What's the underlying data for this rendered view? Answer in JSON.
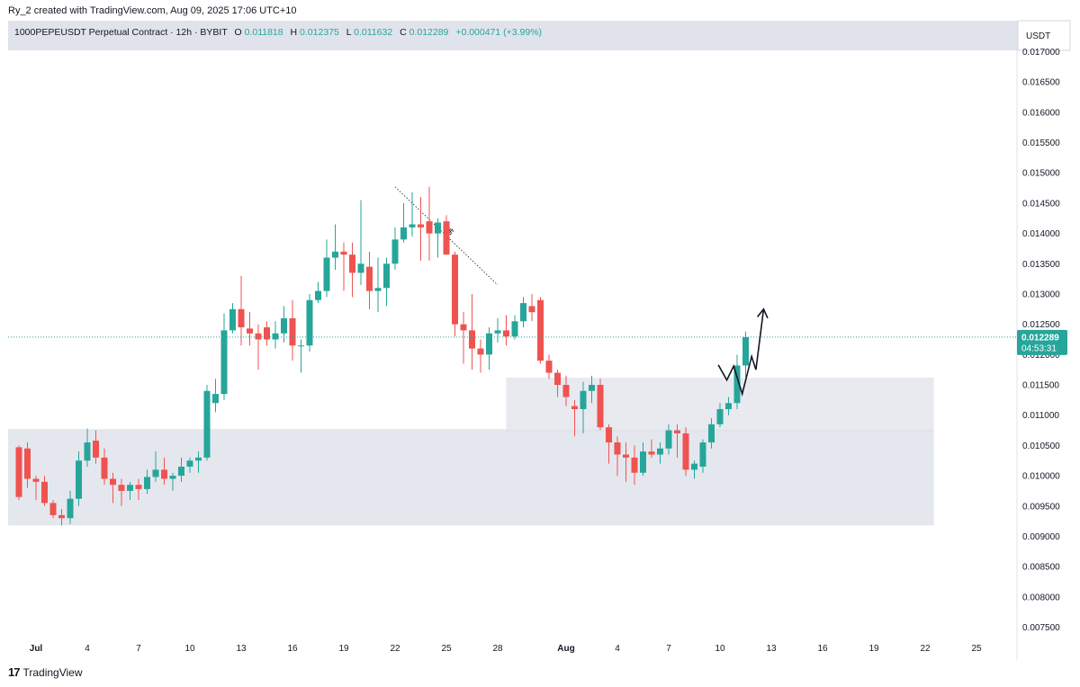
{
  "attribution": "Ry_2 created with TradingView.com, Aug 09, 2025 17:06 UTC+10",
  "legend": {
    "symbol": "1000PEPEUSDT Perpetual Contract · 12h · BYBIT",
    "o_label": "O",
    "o": "0.011818",
    "h_label": "H",
    "h": "0.012375",
    "l_label": "L",
    "l": "0.011632",
    "c_label": "C",
    "c": "0.012289",
    "change": "+0.000471 (+3.99%)"
  },
  "price_axis": {
    "currency": "USDT",
    "ticks": [
      "0.017000",
      "0.016500",
      "0.016000",
      "0.015500",
      "0.015000",
      "0.014500",
      "0.014000",
      "0.013500",
      "0.013000",
      "0.012500",
      "0.012000",
      "0.011500",
      "0.011000",
      "0.010500",
      "0.010000",
      "0.009500",
      "0.009000",
      "0.008500",
      "0.008000",
      "0.007500"
    ],
    "current_price": "0.012289",
    "countdown": "04:53:31"
  },
  "time_axis": {
    "labels": [
      {
        "text": "Jul",
        "bold": true,
        "day": 1
      },
      {
        "text": "4",
        "bold": false,
        "day": 4
      },
      {
        "text": "7",
        "bold": false,
        "day": 7
      },
      {
        "text": "10",
        "bold": false,
        "day": 10
      },
      {
        "text": "13",
        "bold": false,
        "day": 13
      },
      {
        "text": "16",
        "bold": false,
        "day": 16
      },
      {
        "text": "19",
        "bold": false,
        "day": 19
      },
      {
        "text": "22",
        "bold": false,
        "day": 22
      },
      {
        "text": "25",
        "bold": false,
        "day": 25
      },
      {
        "text": "28",
        "bold": false,
        "day": 28
      },
      {
        "text": "Aug",
        "bold": true,
        "day": 32
      },
      {
        "text": "4",
        "bold": false,
        "day": 35
      },
      {
        "text": "7",
        "bold": false,
        "day": 38
      },
      {
        "text": "10",
        "bold": false,
        "day": 41
      },
      {
        "text": "13",
        "bold": false,
        "day": 44
      },
      {
        "text": "16",
        "bold": false,
        "day": 47
      },
      {
        "text": "19",
        "bold": false,
        "day": 50
      },
      {
        "text": "22",
        "bold": false,
        "day": 53
      },
      {
        "text": "25",
        "bold": false,
        "day": 56
      }
    ]
  },
  "annotations": {
    "ss_label": "$$",
    "ss_line": {
      "from_day": 22.0,
      "from_price": 0.01477,
      "to_day": 28.0,
      "to_price": 0.01315
    },
    "zones": [
      {
        "name": "demand-zone",
        "start_day": -0.7,
        "end_day": 53.5,
        "top": 0.01077,
        "bottom": 0.00918
      },
      {
        "name": "flip-zone",
        "start_day": 28.5,
        "end_day": 53.5,
        "top": 0.01162,
        "bottom": 0.01072
      }
    ],
    "projection_path": [
      {
        "day": 40.9,
        "price": 0.01183
      },
      {
        "day": 41.4,
        "price": 0.01158
      },
      {
        "day": 41.8,
        "price": 0.01181
      },
      {
        "day": 42.3,
        "price": 0.01135
      },
      {
        "day": 42.85,
        "price": 0.01197
      },
      {
        "day": 43.1,
        "price": 0.01175
      },
      {
        "day": 43.55,
        "price": 0.01275
      }
    ]
  },
  "colors": {
    "up": "#26a69a",
    "down": "#ef5350",
    "zone": "#e0e3eb",
    "legend_value": "#26a69a",
    "price_label_bg": "#26a69a",
    "text": "#131722"
  },
  "chart_data": {
    "type": "candlestick",
    "title": "1000PEPEUSDT Perpetual Contract · 12h · BYBIT",
    "interval": "12h",
    "xlabel": "",
    "ylabel": "USDT",
    "ylim": [
      0.00725,
      0.0172
    ],
    "x_range_days": [
      0.7,
      57.0
    ],
    "grid": false,
    "candles": [
      {
        "day": 0.0,
        "o": 0.01047,
        "h": 0.0105,
        "l": 0.0096,
        "c": 0.00965
      },
      {
        "day": 0.5,
        "o": 0.01045,
        "h": 0.01055,
        "l": 0.0098,
        "c": 0.00995
      },
      {
        "day": 1.0,
        "o": 0.00995,
        "h": 0.01,
        "l": 0.0096,
        "c": 0.0099
      },
      {
        "day": 1.5,
        "o": 0.0099,
        "h": 0.01,
        "l": 0.0095,
        "c": 0.00955
      },
      {
        "day": 2.0,
        "o": 0.00955,
        "h": 0.0096,
        "l": 0.0093,
        "c": 0.00935
      },
      {
        "day": 2.5,
        "o": 0.00935,
        "h": 0.00945,
        "l": 0.00918,
        "c": 0.0093
      },
      {
        "day": 3.0,
        "o": 0.0093,
        "h": 0.00975,
        "l": 0.0092,
        "c": 0.00962
      },
      {
        "day": 3.5,
        "o": 0.00962,
        "h": 0.0104,
        "l": 0.0095,
        "c": 0.01025
      },
      {
        "day": 4.0,
        "o": 0.01025,
        "h": 0.01078,
        "l": 0.01015,
        "c": 0.01055
      },
      {
        "day": 4.5,
        "o": 0.01058,
        "h": 0.01075,
        "l": 0.0102,
        "c": 0.0103
      },
      {
        "day": 5.0,
        "o": 0.0103,
        "h": 0.01045,
        "l": 0.00985,
        "c": 0.00995
      },
      {
        "day": 5.5,
        "o": 0.00995,
        "h": 0.01005,
        "l": 0.00955,
        "c": 0.00985
      },
      {
        "day": 6.0,
        "o": 0.00985,
        "h": 0.00995,
        "l": 0.0095,
        "c": 0.00975
      },
      {
        "day": 6.5,
        "o": 0.00975,
        "h": 0.0099,
        "l": 0.0096,
        "c": 0.00985
      },
      {
        "day": 7.0,
        "o": 0.00985,
        "h": 0.00995,
        "l": 0.0096,
        "c": 0.00978
      },
      {
        "day": 7.5,
        "o": 0.00978,
        "h": 0.0101,
        "l": 0.0097,
        "c": 0.00998
      },
      {
        "day": 8.0,
        "o": 0.00998,
        "h": 0.0104,
        "l": 0.0099,
        "c": 0.0101
      },
      {
        "day": 8.5,
        "o": 0.0101,
        "h": 0.0103,
        "l": 0.00985,
        "c": 0.00995
      },
      {
        "day": 9.0,
        "o": 0.00995,
        "h": 0.01005,
        "l": 0.00975,
        "c": 0.01
      },
      {
        "day": 9.5,
        "o": 0.01,
        "h": 0.0103,
        "l": 0.0099,
        "c": 0.01015
      },
      {
        "day": 10.0,
        "o": 0.01015,
        "h": 0.0103,
        "l": 0.01005,
        "c": 0.01025
      },
      {
        "day": 10.5,
        "o": 0.01025,
        "h": 0.0104,
        "l": 0.01005,
        "c": 0.0103
      },
      {
        "day": 11.0,
        "o": 0.0103,
        "h": 0.0115,
        "l": 0.01025,
        "c": 0.0114
      },
      {
        "day": 11.5,
        "o": 0.0112,
        "h": 0.0116,
        "l": 0.01105,
        "c": 0.01135
      },
      {
        "day": 12.0,
        "o": 0.01135,
        "h": 0.01268,
        "l": 0.01125,
        "c": 0.0124
      },
      {
        "day": 12.5,
        "o": 0.0124,
        "h": 0.01285,
        "l": 0.01235,
        "c": 0.01275
      },
      {
        "day": 13.0,
        "o": 0.01275,
        "h": 0.0133,
        "l": 0.01215,
        "c": 0.01245
      },
      {
        "day": 13.5,
        "o": 0.01243,
        "h": 0.0127,
        "l": 0.01215,
        "c": 0.01235
      },
      {
        "day": 14.0,
        "o": 0.01235,
        "h": 0.0125,
        "l": 0.01175,
        "c": 0.01225
      },
      {
        "day": 14.5,
        "o": 0.01245,
        "h": 0.01255,
        "l": 0.01215,
        "c": 0.01225
      },
      {
        "day": 15.0,
        "o": 0.01225,
        "h": 0.01255,
        "l": 0.0121,
        "c": 0.01235
      },
      {
        "day": 15.5,
        "o": 0.01235,
        "h": 0.0128,
        "l": 0.0122,
        "c": 0.0126
      },
      {
        "day": 16.0,
        "o": 0.0126,
        "h": 0.0129,
        "l": 0.0119,
        "c": 0.01215
      },
      {
        "day": 16.5,
        "o": 0.01215,
        "h": 0.01225,
        "l": 0.0117,
        "c": 0.01215
      },
      {
        "day": 17.0,
        "o": 0.01215,
        "h": 0.013,
        "l": 0.01205,
        "c": 0.0129
      },
      {
        "day": 17.5,
        "o": 0.0129,
        "h": 0.0132,
        "l": 0.01285,
        "c": 0.01305
      },
      {
        "day": 18.0,
        "o": 0.01305,
        "h": 0.0139,
        "l": 0.01295,
        "c": 0.0136
      },
      {
        "day": 18.5,
        "o": 0.0136,
        "h": 0.01415,
        "l": 0.0134,
        "c": 0.0137
      },
      {
        "day": 19.0,
        "o": 0.0137,
        "h": 0.01385,
        "l": 0.01305,
        "c": 0.01365
      },
      {
        "day": 19.5,
        "o": 0.01365,
        "h": 0.01385,
        "l": 0.01295,
        "c": 0.01335
      },
      {
        "day": 20.0,
        "o": 0.01335,
        "h": 0.01455,
        "l": 0.01315,
        "c": 0.0135
      },
      {
        "day": 20.5,
        "o": 0.01345,
        "h": 0.0137,
        "l": 0.01275,
        "c": 0.01305
      },
      {
        "day": 21.0,
        "o": 0.01305,
        "h": 0.0136,
        "l": 0.0127,
        "c": 0.0131
      },
      {
        "day": 21.5,
        "o": 0.0131,
        "h": 0.0136,
        "l": 0.0128,
        "c": 0.0135
      },
      {
        "day": 22.0,
        "o": 0.0135,
        "h": 0.0141,
        "l": 0.0134,
        "c": 0.0139
      },
      {
        "day": 22.5,
        "o": 0.0139,
        "h": 0.0145,
        "l": 0.01385,
        "c": 0.0141
      },
      {
        "day": 23.0,
        "o": 0.0141,
        "h": 0.01468,
        "l": 0.01395,
        "c": 0.01415
      },
      {
        "day": 23.5,
        "o": 0.01415,
        "h": 0.0146,
        "l": 0.01355,
        "c": 0.0141
      },
      {
        "day": 24.0,
        "o": 0.0142,
        "h": 0.01477,
        "l": 0.01355,
        "c": 0.014
      },
      {
        "day": 24.5,
        "o": 0.014,
        "h": 0.01425,
        "l": 0.0136,
        "c": 0.01418
      },
      {
        "day": 25.0,
        "o": 0.0142,
        "h": 0.0143,
        "l": 0.01365,
        "c": 0.01365
      },
      {
        "day": 25.5,
        "o": 0.01365,
        "h": 0.0137,
        "l": 0.0123,
        "c": 0.0125
      },
      {
        "day": 26.0,
        "o": 0.0125,
        "h": 0.0127,
        "l": 0.01185,
        "c": 0.0124
      },
      {
        "day": 26.5,
        "o": 0.0124,
        "h": 0.013,
        "l": 0.01175,
        "c": 0.0121
      },
      {
        "day": 27.0,
        "o": 0.0121,
        "h": 0.01225,
        "l": 0.0117,
        "c": 0.012
      },
      {
        "day": 27.5,
        "o": 0.012,
        "h": 0.01245,
        "l": 0.01175,
        "c": 0.01235
      },
      {
        "day": 28.0,
        "o": 0.01235,
        "h": 0.0126,
        "l": 0.0122,
        "c": 0.0124
      },
      {
        "day": 28.5,
        "o": 0.0124,
        "h": 0.01265,
        "l": 0.01215,
        "c": 0.0123
      },
      {
        "day": 29.0,
        "o": 0.0123,
        "h": 0.01265,
        "l": 0.01225,
        "c": 0.01255
      },
      {
        "day": 29.5,
        "o": 0.01255,
        "h": 0.01295,
        "l": 0.01245,
        "c": 0.01285
      },
      {
        "day": 30.0,
        "o": 0.0128,
        "h": 0.013,
        "l": 0.01255,
        "c": 0.0127
      },
      {
        "day": 30.5,
        "o": 0.0129,
        "h": 0.01295,
        "l": 0.01185,
        "c": 0.0119
      },
      {
        "day": 31.0,
        "o": 0.0119,
        "h": 0.012,
        "l": 0.0116,
        "c": 0.0117
      },
      {
        "day": 31.5,
        "o": 0.0117,
        "h": 0.01175,
        "l": 0.0113,
        "c": 0.0115
      },
      {
        "day": 32.0,
        "o": 0.0115,
        "h": 0.01165,
        "l": 0.01115,
        "c": 0.0113
      },
      {
        "day": 32.5,
        "o": 0.01115,
        "h": 0.01125,
        "l": 0.01065,
        "c": 0.0111
      },
      {
        "day": 33.0,
        "o": 0.0111,
        "h": 0.01155,
        "l": 0.0107,
        "c": 0.0114
      },
      {
        "day": 33.5,
        "o": 0.0114,
        "h": 0.01165,
        "l": 0.0112,
        "c": 0.0115
      },
      {
        "day": 34.0,
        "o": 0.0115,
        "h": 0.0116,
        "l": 0.01075,
        "c": 0.0108
      },
      {
        "day": 34.5,
        "o": 0.0108,
        "h": 0.01085,
        "l": 0.0102,
        "c": 0.01055
      },
      {
        "day": 35.0,
        "o": 0.01055,
        "h": 0.01065,
        "l": 0.01,
        "c": 0.01035
      },
      {
        "day": 35.5,
        "o": 0.01035,
        "h": 0.01055,
        "l": 0.0099,
        "c": 0.0103
      },
      {
        "day": 36.0,
        "o": 0.0103,
        "h": 0.0105,
        "l": 0.00985,
        "c": 0.01005
      },
      {
        "day": 36.5,
        "o": 0.01005,
        "h": 0.01055,
        "l": 0.01,
        "c": 0.0104
      },
      {
        "day": 37.0,
        "o": 0.0104,
        "h": 0.0106,
        "l": 0.0103,
        "c": 0.01035
      },
      {
        "day": 37.5,
        "o": 0.01035,
        "h": 0.01055,
        "l": 0.0102,
        "c": 0.01045
      },
      {
        "day": 38.0,
        "o": 0.01045,
        "h": 0.01085,
        "l": 0.01035,
        "c": 0.01075
      },
      {
        "day": 38.5,
        "o": 0.01075,
        "h": 0.01085,
        "l": 0.0103,
        "c": 0.0107
      },
      {
        "day": 39.0,
        "o": 0.0107,
        "h": 0.0108,
        "l": 0.01,
        "c": 0.0101
      },
      {
        "day": 39.5,
        "o": 0.0101,
        "h": 0.01025,
        "l": 0.00995,
        "c": 0.0102
      },
      {
        "day": 40.0,
        "o": 0.01015,
        "h": 0.0106,
        "l": 0.01005,
        "c": 0.01055
      },
      {
        "day": 40.5,
        "o": 0.01055,
        "h": 0.01095,
        "l": 0.01045,
        "c": 0.01085
      },
      {
        "day": 41.0,
        "o": 0.01085,
        "h": 0.0112,
        "l": 0.0108,
        "c": 0.0111
      },
      {
        "day": 41.5,
        "o": 0.0111,
        "h": 0.0113,
        "l": 0.011,
        "c": 0.0112
      },
      {
        "day": 42.0,
        "o": 0.0112,
        "h": 0.012,
        "l": 0.0111,
        "c": 0.01182
      },
      {
        "day": 42.5,
        "o": 0.01182,
        "h": 0.01238,
        "l": 0.01163,
        "c": 0.01229
      }
    ]
  }
}
